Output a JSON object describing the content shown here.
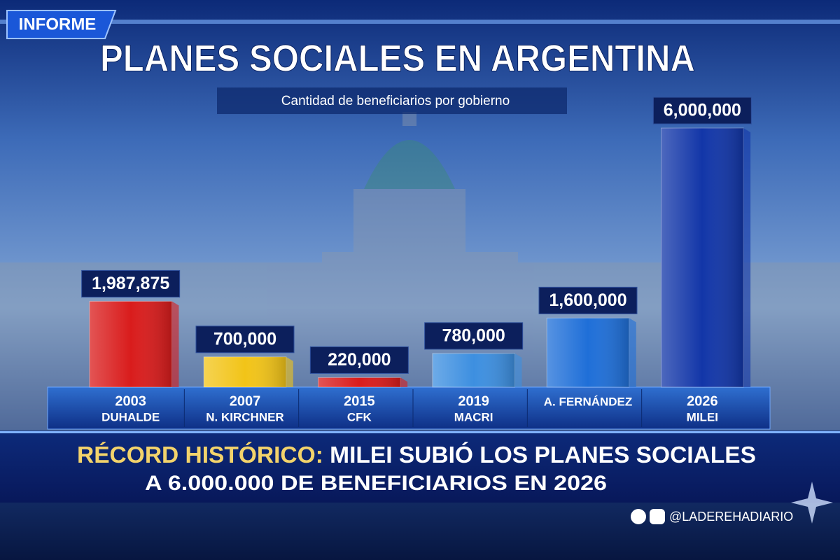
{
  "chart_data": {
    "type": "bar",
    "badge": "INFORME",
    "title": "PLANES SOCIALES EN ARGENTINA",
    "subtitle": "Cantidad de beneficiarios por gobierno",
    "categories": [
      "2003",
      "2007",
      "2015",
      "2019",
      null,
      "2026"
    ],
    "governments": [
      "DUHALDE",
      "N. KIRCHNER",
      "CFK",
      "MACRI",
      "A. FERNÁNDEZ",
      "MILEI"
    ],
    "values": [
      1987875,
      700000,
      220000,
      780000,
      1600000,
      6000000
    ],
    "value_labels": [
      "1,987,875",
      "700,000",
      "220,000",
      "780,000",
      "1,600,000",
      "6,000,000"
    ],
    "colors": [
      "#d91c1c",
      "#f2c418",
      "#d91c1c",
      "#3d8fe0",
      "#1f6fd8",
      "#1236a8"
    ],
    "headline": {
      "highlight": "RÉCORD HISTÓRICO:",
      "line1": "MILEI SUBIÓ LOS PLANES SOCIALES",
      "line2": "A 6.000.000 DE BENEFICIARIOS EN 2026"
    },
    "source": "@LADEREHADIARIO"
  }
}
